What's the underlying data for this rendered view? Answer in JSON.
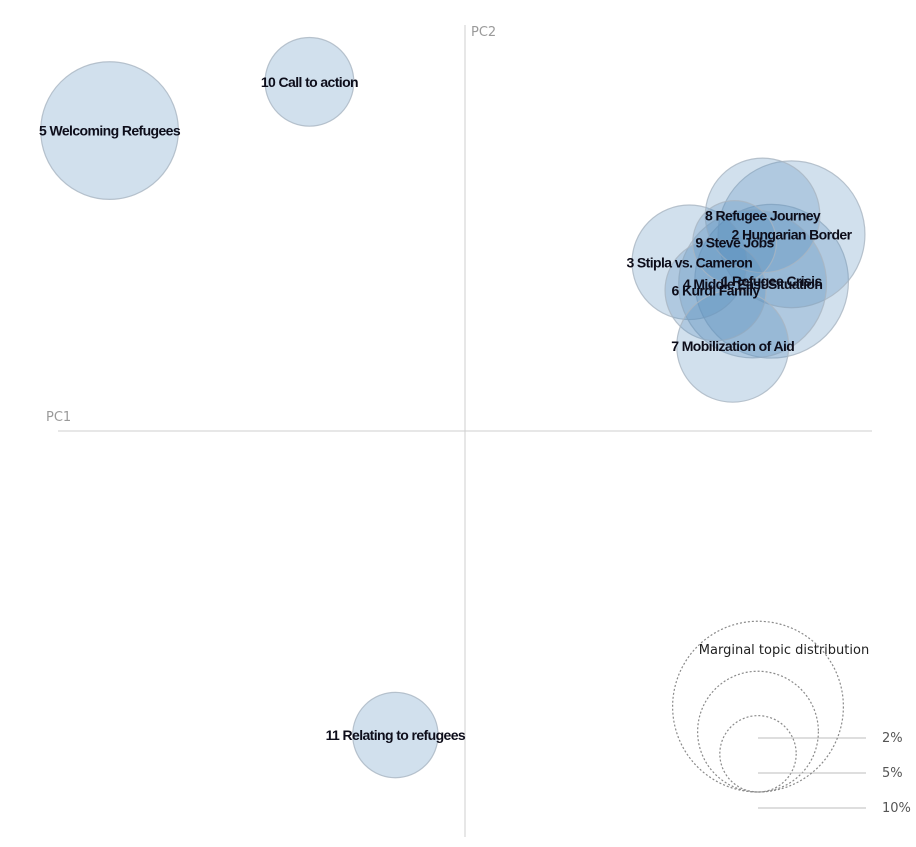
{
  "chart_data": {
    "type": "scatter",
    "subtype": "bubble",
    "xlabel": "PC1",
    "ylabel": "PC2",
    "axes_centered": true,
    "grid": false,
    "xlim": [
      -0.45,
      0.45
    ],
    "ylim": [
      -0.45,
      0.45
    ],
    "topics": [
      {
        "label": "1 Refugee Crisis",
        "x": 0.339,
        "y": 0.166,
        "size": 8.1
      },
      {
        "label": "2 Hungarian Border",
        "x": 0.361,
        "y": 0.218,
        "size": 7.4
      },
      {
        "label": "3 Stipla vs. Cameron",
        "x": 0.248,
        "y": 0.187,
        "size": 4.5
      },
      {
        "label": "4 Middle East Situation",
        "x": 0.318,
        "y": 0.163,
        "size": 7.5
      },
      {
        "label": "5 Welcoming Refugees",
        "x": -0.393,
        "y": 0.333,
        "size": 6.5
      },
      {
        "label": "6 Kurdi Family",
        "x": 0.277,
        "y": 0.156,
        "size": 3.5
      },
      {
        "label": "7 Mobilization of Aid",
        "x": 0.296,
        "y": 0.094,
        "size": 4.3
      },
      {
        "label": "8 Refugee Journey",
        "x": 0.329,
        "y": 0.239,
        "size": 4.5
      },
      {
        "label": "9 Steve Jobs",
        "x": 0.298,
        "y": 0.209,
        "size": 2.4
      },
      {
        "label": "10 Call to action",
        "x": -0.172,
        "y": 0.387,
        "size": 2.7
      },
      {
        "label": "11 Relating to refugees",
        "x": -0.077,
        "y": -0.337,
        "size": 2.5
      }
    ],
    "legend": {
      "title": "Marginal topic distribution",
      "placement": "bottom-right",
      "items": [
        {
          "label": "2%",
          "value": 2
        },
        {
          "label": "5%",
          "value": 5
        },
        {
          "label": "10%",
          "value": 10
        }
      ]
    }
  }
}
